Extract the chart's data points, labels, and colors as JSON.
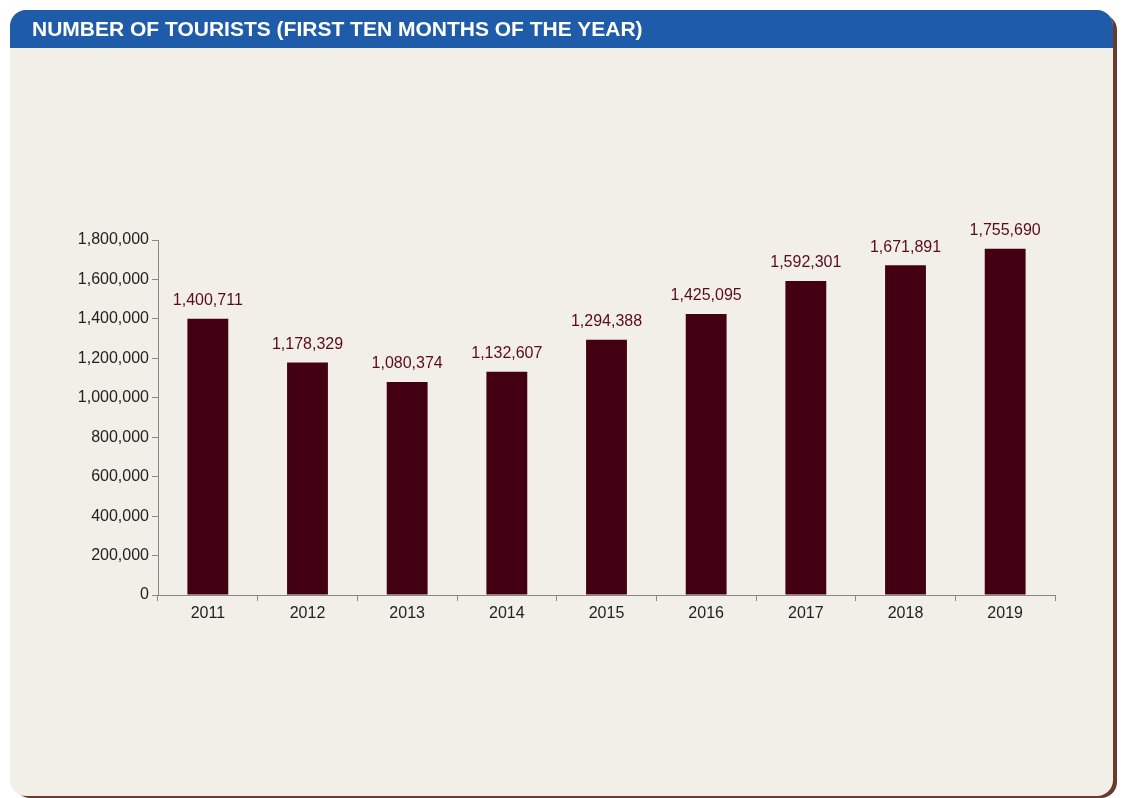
{
  "chart_data": {
    "type": "bar",
    "title": "NUMBER OF TOURISTS (FIRST TEN MONTHS OF THE YEAR)",
    "categories": [
      "2011",
      "2012",
      "2013",
      "2014",
      "2015",
      "2016",
      "2017",
      "2018",
      "2019"
    ],
    "values": [
      1400711,
      1178329,
      1080374,
      1132607,
      1294388,
      1425095,
      1592301,
      1671891,
      1755690
    ],
    "value_labels": [
      "1,400,711",
      "1,178,329",
      "1,080,374",
      "1,132,607",
      "1,294,388",
      "1,425,095",
      "1,592,301",
      "1,671,891",
      "1,755,690"
    ],
    "color": "#430013",
    "ylim": [
      0,
      1800000
    ],
    "yticks": [
      0,
      {
        "value": 200000,
        "label": "200,000"
      },
      {
        "value": 400000,
        "label": "400,000"
      },
      {
        "value": 600000,
        "label": "600,000"
      },
      {
        "value": 800000,
        "label": "800,000"
      },
      {
        "value": 1000000,
        "label": "1,000,000"
      },
      {
        "value": 1200000,
        "label": "1,200,000"
      },
      {
        "value": 1400000,
        "label": "1,400,000"
      },
      {
        "value": 1600000,
        "label": "1,600,000"
      },
      {
        "value": 1800000,
        "label": "1,800,000"
      }
    ],
    "grid": false,
    "legend": false
  }
}
